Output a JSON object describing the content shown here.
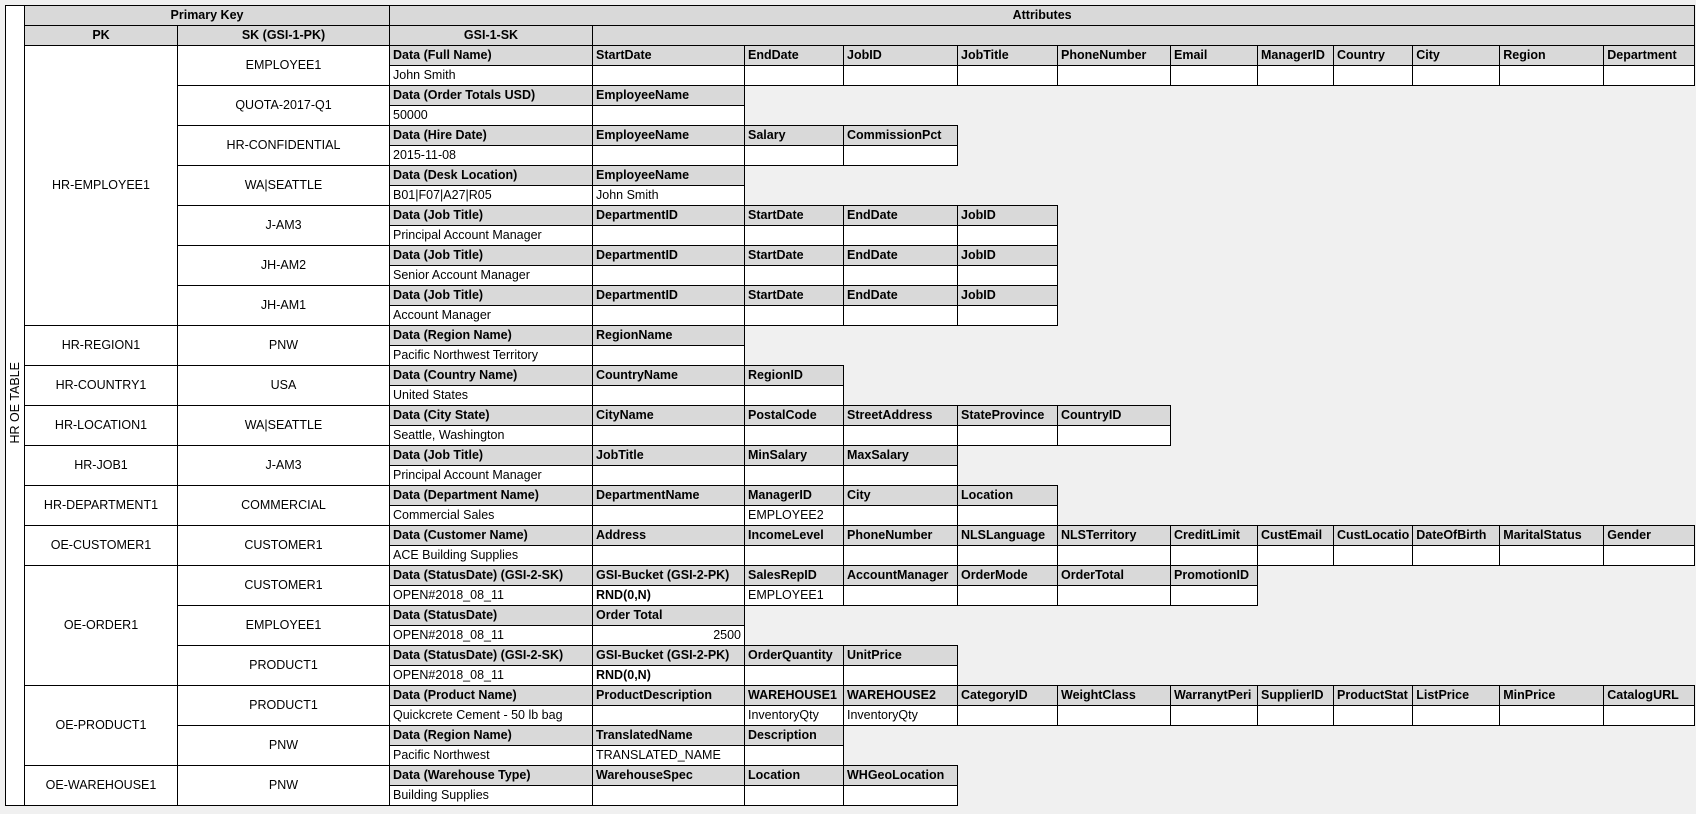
{
  "table_label": "HR OE TABLE",
  "header": {
    "primary_key": "Primary Key",
    "attributes": "Attributes",
    "pk": "PK",
    "sk": "SK (GSI-1-PK)",
    "gsi1sk": "GSI-1-SK"
  },
  "colors": {
    "header_fill": "#d9d9d9",
    "sheet_bg": "#f0f0f0",
    "cell_fill": "#ffffff"
  },
  "groups": [
    {
      "pk": "HR-EMPLOYEE1",
      "items": [
        {
          "sk": "EMPLOYEE1",
          "attrs": [
            {
              "n": "Data (Full Name)",
              "v": "John Smith"
            },
            {
              "n": "StartDate",
              "v": ""
            },
            {
              "n": "EndDate",
              "v": ""
            },
            {
              "n": "JobID",
              "v": ""
            },
            {
              "n": "JobTitle",
              "v": ""
            },
            {
              "n": "PhoneNumber",
              "v": ""
            },
            {
              "n": "Email",
              "v": ""
            },
            {
              "n": "ManagerID",
              "v": ""
            },
            {
              "n": "Country",
              "v": ""
            },
            {
              "n": "City",
              "v": ""
            },
            {
              "n": "Region",
              "v": ""
            },
            {
              "n": "Department",
              "v": ""
            }
          ]
        },
        {
          "sk": "QUOTA-2017-Q1",
          "attrs": [
            {
              "n": "Data (Order Totals USD)",
              "v": "50000"
            },
            {
              "n": "EmployeeName",
              "v": ""
            }
          ]
        },
        {
          "sk": "HR-CONFIDENTIAL",
          "attrs": [
            {
              "n": "Data (Hire Date)",
              "v": "2015-11-08"
            },
            {
              "n": "EmployeeName",
              "v": ""
            },
            {
              "n": "Salary",
              "v": ""
            },
            {
              "n": "CommissionPct",
              "v": ""
            }
          ]
        },
        {
          "sk": "WA|SEATTLE",
          "attrs": [
            {
              "n": "Data (Desk Location)",
              "v": "B01|F07|A27|R05"
            },
            {
              "n": "EmployeeName",
              "v": "John Smith"
            }
          ]
        },
        {
          "sk": "J-AM3",
          "attrs": [
            {
              "n": "Data (Job Title)",
              "v": "Principal Account Manager"
            },
            {
              "n": "DepartmentID",
              "v": ""
            },
            {
              "n": "StartDate",
              "v": ""
            },
            {
              "n": "EndDate",
              "v": ""
            },
            {
              "n": "JobID",
              "v": ""
            }
          ]
        },
        {
          "sk": "JH-AM2",
          "attrs": [
            {
              "n": "Data (Job Title)",
              "v": "Senior Account Manager"
            },
            {
              "n": "DepartmentID",
              "v": ""
            },
            {
              "n": "StartDate",
              "v": ""
            },
            {
              "n": "EndDate",
              "v": ""
            },
            {
              "n": "JobID",
              "v": ""
            }
          ]
        },
        {
          "sk": "JH-AM1",
          "attrs": [
            {
              "n": "Data (Job Title)",
              "v": "Account Manager"
            },
            {
              "n": "DepartmentID",
              "v": ""
            },
            {
              "n": "StartDate",
              "v": ""
            },
            {
              "n": "EndDate",
              "v": ""
            },
            {
              "n": "JobID",
              "v": ""
            }
          ]
        }
      ]
    },
    {
      "pk": "HR-REGION1",
      "items": [
        {
          "sk": "PNW",
          "attrs": [
            {
              "n": "Data (Region Name)",
              "v": "Pacific Northwest Territory"
            },
            {
              "n": "RegionName",
              "v": ""
            }
          ]
        }
      ]
    },
    {
      "pk": "HR-COUNTRY1",
      "items": [
        {
          "sk": "USA",
          "attrs": [
            {
              "n": "Data (Country Name)",
              "v": "United States"
            },
            {
              "n": "CountryName",
              "v": ""
            },
            {
              "n": "RegionID",
              "v": ""
            }
          ]
        }
      ]
    },
    {
      "pk": "HR-LOCATION1",
      "items": [
        {
          "sk": "WA|SEATTLE",
          "attrs": [
            {
              "n": "Data (City State)",
              "v": "Seattle, Washington"
            },
            {
              "n": "CityName",
              "v": ""
            },
            {
              "n": "PostalCode",
              "v": ""
            },
            {
              "n": "StreetAddress",
              "v": ""
            },
            {
              "n": "StateProvince",
              "v": ""
            },
            {
              "n": "CountryID",
              "v": ""
            }
          ]
        }
      ]
    },
    {
      "pk": "HR-JOB1",
      "items": [
        {
          "sk": "J-AM3",
          "attrs": [
            {
              "n": "Data (Job Title)",
              "v": "Principal Account Manager"
            },
            {
              "n": "JobTitle",
              "v": ""
            },
            {
              "n": "MinSalary",
              "v": ""
            },
            {
              "n": "MaxSalary",
              "v": ""
            }
          ]
        }
      ]
    },
    {
      "pk": "HR-DEPARTMENT1",
      "items": [
        {
          "sk": "COMMERCIAL",
          "attrs": [
            {
              "n": "Data (Department Name)",
              "v": "Commercial Sales"
            },
            {
              "n": "DepartmentName",
              "v": ""
            },
            {
              "n": "ManagerID",
              "v": "EMPLOYEE2"
            },
            {
              "n": "City",
              "v": ""
            },
            {
              "n": "Location",
              "v": ""
            }
          ]
        }
      ]
    },
    {
      "pk": "OE-CUSTOMER1",
      "items": [
        {
          "sk": "CUSTOMER1",
          "attrs": [
            {
              "n": "Data (Customer Name)",
              "v": "ACE Building Supplies"
            },
            {
              "n": "Address",
              "v": ""
            },
            {
              "n": "IncomeLevel",
              "v": ""
            },
            {
              "n": "PhoneNumber",
              "v": ""
            },
            {
              "n": "NLSLanguage",
              "v": ""
            },
            {
              "n": "NLSTerritory",
              "v": ""
            },
            {
              "n": "CreditLimit",
              "v": ""
            },
            {
              "n": "CustEmail",
              "v": ""
            },
            {
              "n": "CustLocatio",
              "v": ""
            },
            {
              "n": "DateOfBirth",
              "v": ""
            },
            {
              "n": "MaritalStatus",
              "v": ""
            },
            {
              "n": "Gender",
              "v": ""
            }
          ]
        }
      ]
    },
    {
      "pk": "OE-ORDER1",
      "items": [
        {
          "sk": "CUSTOMER1",
          "attrs": [
            {
              "n": "Data (StatusDate) (GSI-2-SK)",
              "v": "OPEN#2018_08_11"
            },
            {
              "n": "GSI-Bucket (GSI-2-PK)",
              "v": "RND(0,N)",
              "bold": true
            },
            {
              "n": "SalesRepID",
              "v": "EMPLOYEE1"
            },
            {
              "n": "AccountManager",
              "v": ""
            },
            {
              "n": "OrderMode",
              "v": ""
            },
            {
              "n": "OrderTotal",
              "v": ""
            },
            {
              "n": "PromotionID",
              "v": ""
            }
          ]
        },
        {
          "sk": "EMPLOYEE1",
          "attrs": [
            {
              "n": "Data (StatusDate)",
              "v": "OPEN#2018_08_11"
            },
            {
              "n": "Order Total",
              "v": "2500",
              "numeric": true
            }
          ]
        },
        {
          "sk": "PRODUCT1",
          "attrs": [
            {
              "n": "Data (StatusDate) (GSI-2-SK)",
              "v": "OPEN#2018_08_11"
            },
            {
              "n": "GSI-Bucket (GSI-2-PK)",
              "v": "RND(0,N)",
              "bold": true
            },
            {
              "n": "OrderQuantity",
              "v": ""
            },
            {
              "n": "UnitPrice",
              "v": ""
            }
          ]
        }
      ]
    },
    {
      "pk": "OE-PRODUCT1",
      "items": [
        {
          "sk": "PRODUCT1",
          "attrs": [
            {
              "n": "Data (Product Name)",
              "v": "Quickcrete Cement - 50 lb bag"
            },
            {
              "n": "ProductDescription",
              "v": ""
            },
            {
              "n": "WAREHOUSE1",
              "v": "InventoryQty"
            },
            {
              "n": "WAREHOUSE2",
              "v": "InventoryQty"
            },
            {
              "n": "CategoryID",
              "v": ""
            },
            {
              "n": "WeightClass",
              "v": ""
            },
            {
              "n": "WarranytPeri",
              "v": ""
            },
            {
              "n": "SupplierID",
              "v": ""
            },
            {
              "n": "ProductStat",
              "v": ""
            },
            {
              "n": "ListPrice",
              "v": ""
            },
            {
              "n": "MinPrice",
              "v": ""
            },
            {
              "n": "CatalogURL",
              "v": ""
            }
          ]
        },
        {
          "sk": "PNW",
          "attrs": [
            {
              "n": "Data (Region Name)",
              "v": "Pacific Northwest"
            },
            {
              "n": "TranslatedName",
              "v": "TRANSLATED_NAME"
            },
            {
              "n": "Description",
              "v": ""
            }
          ]
        }
      ]
    },
    {
      "pk": "OE-WAREHOUSE1",
      "items": [
        {
          "sk": "PNW",
          "attrs": [
            {
              "n": "Data (Warehouse Type)",
              "v": "Building Supplies"
            },
            {
              "n": "WarehouseSpec",
              "v": ""
            },
            {
              "n": "Location",
              "v": ""
            },
            {
              "n": "WHGeoLocation",
              "v": ""
            }
          ]
        }
      ]
    }
  ]
}
